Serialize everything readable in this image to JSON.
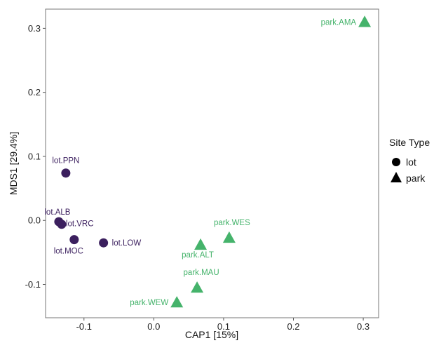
{
  "chart_data": {
    "type": "scatter",
    "xlabel": "CAP1   [15%]",
    "ylabel": "MDS1   [29.4%]",
    "xlim": [
      -0.155,
      0.322
    ],
    "ylim": [
      -0.152,
      0.33
    ],
    "xticks": [
      -0.1,
      0.0,
      0.1,
      0.2,
      0.3
    ],
    "xtick_labels": [
      "-0.1",
      "0.0",
      "0.1",
      "0.2",
      "0.3"
    ],
    "yticks": [
      -0.1,
      0.0,
      0.1,
      0.2,
      0.3
    ],
    "ytick_labels": [
      "-0.1",
      "0.0",
      "0.1",
      "0.2",
      "0.3"
    ],
    "grid": false,
    "legend": {
      "title": "Site Type",
      "placement": "right",
      "entries": [
        {
          "label": "lot",
          "shape": "circle"
        },
        {
          "label": "park",
          "shape": "triangle"
        }
      ]
    },
    "series": [
      {
        "name": "lot",
        "shape": "circle",
        "color": "#3b1f5e",
        "points": [
          {
            "label": "lot.PPN",
            "x": -0.126,
            "y": 0.074
          },
          {
            "label": "lot.ALB",
            "x": -0.136,
            "y": -0.002
          },
          {
            "label": "lot.VRC",
            "x": -0.132,
            "y": -0.006
          },
          {
            "label": "lot.MOC",
            "x": -0.114,
            "y": -0.03
          },
          {
            "label": "lot.LOW",
            "x": -0.072,
            "y": -0.035
          }
        ]
      },
      {
        "name": "park",
        "shape": "triangle",
        "color": "#45b36b",
        "points": [
          {
            "label": "park.AMA",
            "x": 0.302,
            "y": 0.31
          },
          {
            "label": "park.WES",
            "x": 0.108,
            "y": -0.027
          },
          {
            "label": "park.ALT",
            "x": 0.067,
            "y": -0.038
          },
          {
            "label": "park.MAU",
            "x": 0.062,
            "y": -0.105
          },
          {
            "label": "park.WEW",
            "x": 0.033,
            "y": -0.128
          }
        ]
      }
    ]
  }
}
